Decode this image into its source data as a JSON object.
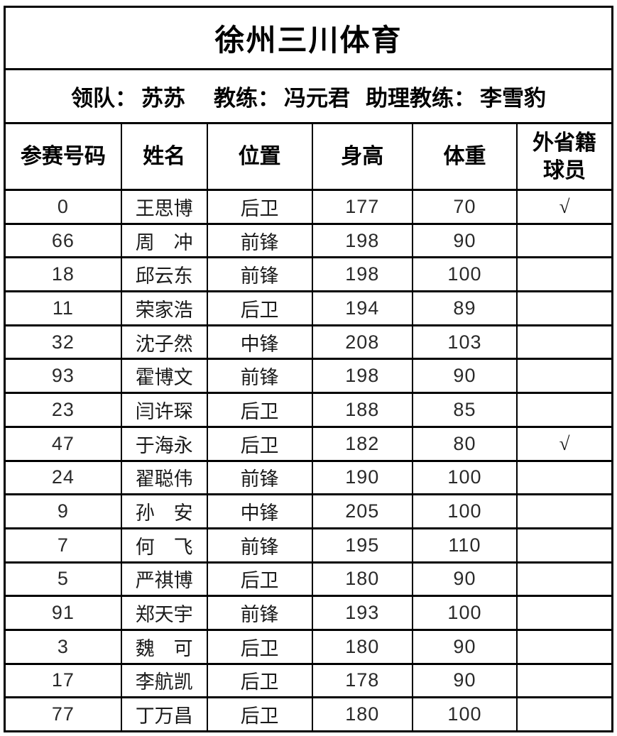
{
  "team": {
    "title": "徐州三川体育"
  },
  "info": {
    "leader_label": "领队：",
    "leader_name": "苏苏",
    "coach_label": "教练：",
    "coach_name": "冯元君",
    "assistant_label": "助理教练：",
    "assistant_name": "李雪豹"
  },
  "table": {
    "headers": [
      "参赛号码",
      "姓名",
      "位置",
      "身高",
      "体重",
      "外省籍球员"
    ],
    "header_province": {
      "line1": "外省籍",
      "line2": "球员"
    },
    "checkmark_symbol": "√",
    "rows": [
      {
        "number": "0",
        "name": "王思博",
        "position": "后卫",
        "height": "177",
        "weight": "70",
        "out_of_province": "√"
      },
      {
        "number": "66",
        "name": "周　冲",
        "position": "前锋",
        "height": "198",
        "weight": "90",
        "out_of_province": ""
      },
      {
        "number": "18",
        "name": "邱云东",
        "position": "前锋",
        "height": "198",
        "weight": "100",
        "out_of_province": ""
      },
      {
        "number": "11",
        "name": "荣家浩",
        "position": "后卫",
        "height": "194",
        "weight": "89",
        "out_of_province": ""
      },
      {
        "number": "32",
        "name": "沈子然",
        "position": "中锋",
        "height": "208",
        "weight": "103",
        "out_of_province": ""
      },
      {
        "number": "93",
        "name": "霍博文",
        "position": "前锋",
        "height": "198",
        "weight": "90",
        "out_of_province": ""
      },
      {
        "number": "23",
        "name": "闫许琛",
        "position": "后卫",
        "height": "188",
        "weight": "85",
        "out_of_province": ""
      },
      {
        "number": "47",
        "name": "于海永",
        "position": "后卫",
        "height": "182",
        "weight": "80",
        "out_of_province": "√"
      },
      {
        "number": "24",
        "name": "翟聪伟",
        "position": "前锋",
        "height": "190",
        "weight": "100",
        "out_of_province": ""
      },
      {
        "number": "9",
        "name": "孙　安",
        "position": "中锋",
        "height": "205",
        "weight": "100",
        "out_of_province": ""
      },
      {
        "number": "7",
        "name": "何　飞",
        "position": "前锋",
        "height": "195",
        "weight": "110",
        "out_of_province": ""
      },
      {
        "number": "5",
        "name": "严祺博",
        "position": "后卫",
        "height": "180",
        "weight": "90",
        "out_of_province": ""
      },
      {
        "number": "91",
        "name": "郑天宇",
        "position": "前锋",
        "height": "193",
        "weight": "100",
        "out_of_province": ""
      },
      {
        "number": "3",
        "name": "魏　可",
        "position": "后卫",
        "height": "180",
        "weight": "90",
        "out_of_province": ""
      },
      {
        "number": "17",
        "name": "李航凯",
        "position": "后卫",
        "height": "178",
        "weight": "90",
        "out_of_province": ""
      },
      {
        "number": "77",
        "name": "丁万昌",
        "position": "后卫",
        "height": "180",
        "weight": "100",
        "out_of_province": ""
      }
    ]
  }
}
